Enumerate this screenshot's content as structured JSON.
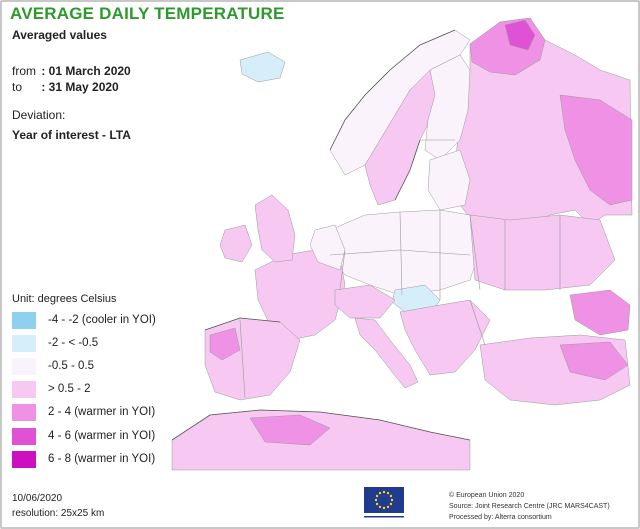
{
  "title": "AVERAGE DAILY TEMPERATURE",
  "subtitle": "Averaged values",
  "period": {
    "from_label": "from",
    "from_value": ": 01 March 2020",
    "to_label": "to",
    "to_value": ": 31 May 2020"
  },
  "deviation": {
    "label": "Deviation:",
    "value": "Year of interest - LTA"
  },
  "legend": {
    "unit": "Unit: degrees Celsius",
    "items": [
      {
        "label": "-4 - -2 (cooler in YOI)",
        "color": "#8fcff0"
      },
      {
        "label": "-2 - < -0.5",
        "color": "#d6eefa"
      },
      {
        "label": "-0.5 - 0.5",
        "color": "#fbf3fb"
      },
      {
        "label": "> 0.5 - 2",
        "color": "#f6c8f2"
      },
      {
        "label": "2 - 4 (warmer in YOI)",
        "color": "#ef92e6"
      },
      {
        "label": "4 - 6 (warmer in YOI)",
        "color": "#e052d4"
      },
      {
        "label": "6 - 8 (warmer in YOI)",
        "color": "#cc10c0"
      }
    ]
  },
  "footer": {
    "date": "10/06/2020",
    "resolution": "resolution: 25x25 km",
    "copyright": "© European Union 2020",
    "source": "Source: Joint Research Centre (JRC MARS4CAST)",
    "processed": "Processed by: Alterra consortium"
  },
  "colors": {
    "sea": "#ffffff",
    "border": "#9a9a9a",
    "title": "#2e9a2e",
    "eu_flag": "#1f3c8f",
    "eu_stars": "#ffd21f"
  }
}
